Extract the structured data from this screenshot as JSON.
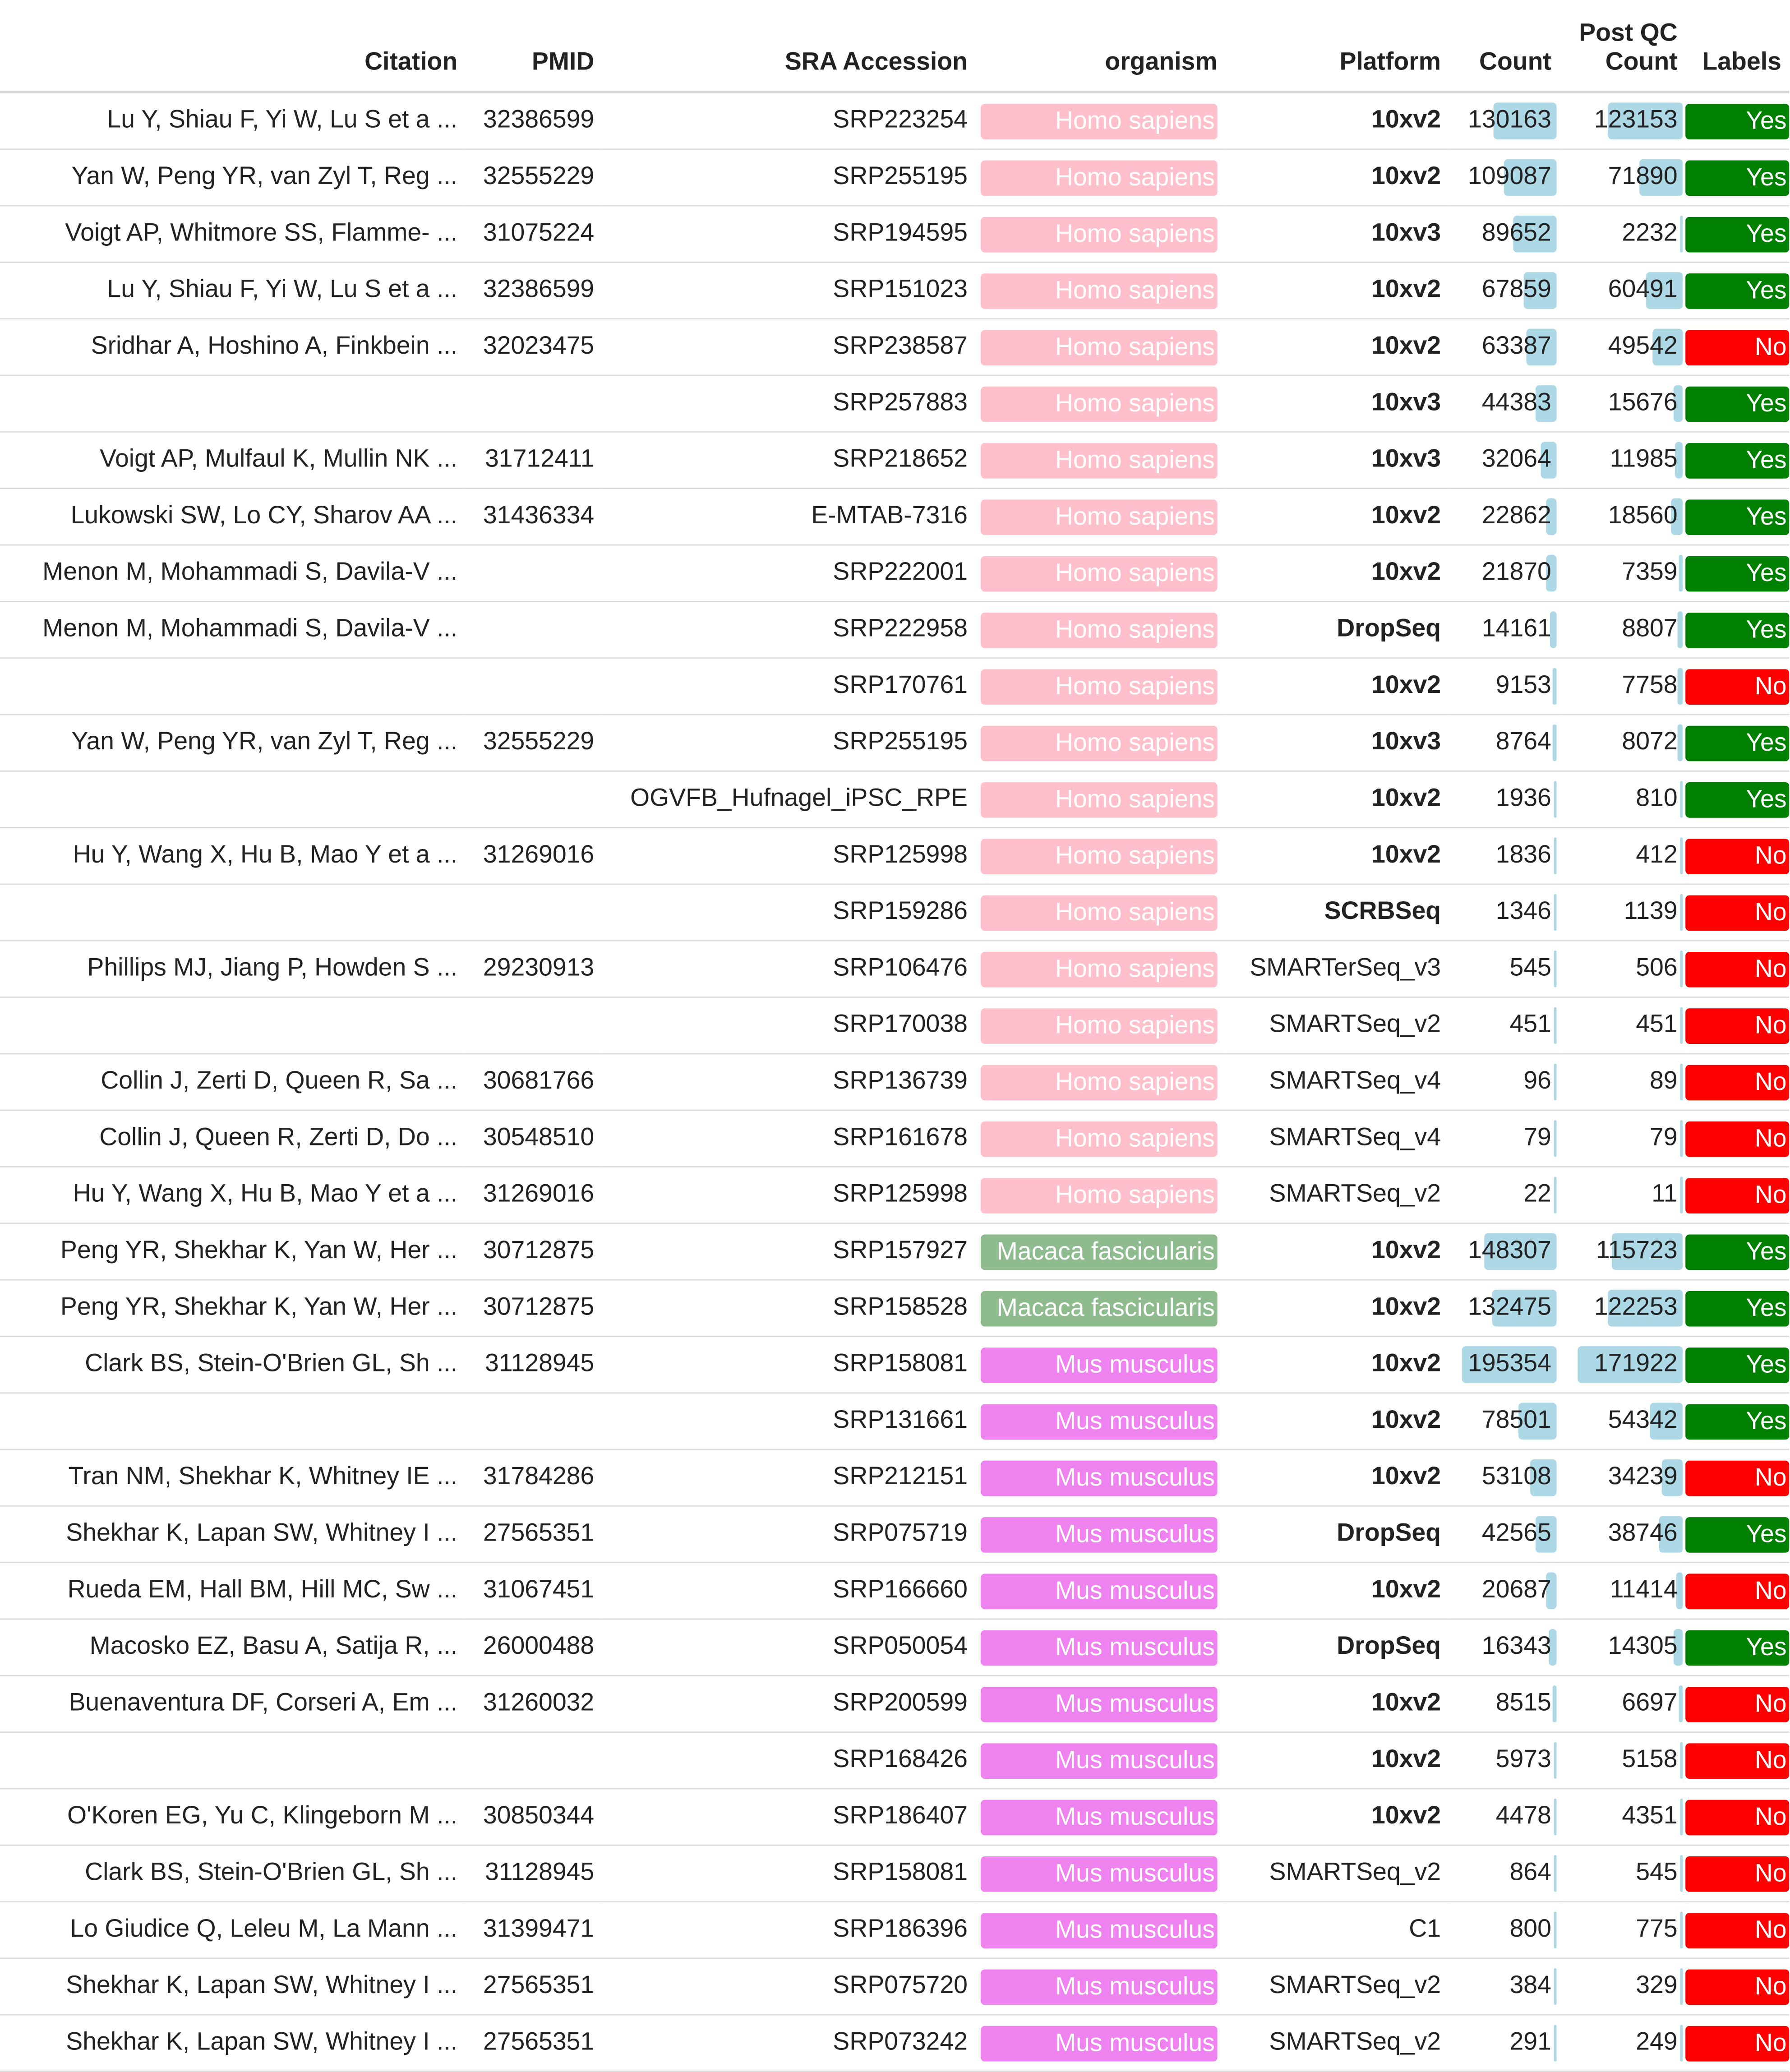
{
  "colors": {
    "Homo sapiens": "#ffc0cb",
    "Macaca fascicularis": "#8fbc8f",
    "Mus musculus": "#ee82ee",
    "Yes": "#008000",
    "No": "#ff0000",
    "bar": "#add8e6"
  },
  "headers": {
    "citation": "Citation",
    "pmid": "PMID",
    "sra": "SRA Accession",
    "organism": "organism",
    "platform": "Platform",
    "count": "Count",
    "postqc_line1": "Post QC",
    "postqc_line2": "Count",
    "labels": "Labels"
  },
  "rows": [
    {
      "citation": "Lu Y, Shiau F, Yi W, Lu S et a ...",
      "pmid": "32386599",
      "sra": "SRP223254",
      "organism": "Homo sapiens",
      "platform": "10xv2",
      "platform_bold": true,
      "count": "130163",
      "postqc": "123153",
      "labels": "Yes"
    },
    {
      "citation": "Yan W, Peng YR, van Zyl T, Reg ...",
      "pmid": "32555229",
      "sra": "SRP255195",
      "organism": "Homo sapiens",
      "platform": "10xv2",
      "platform_bold": true,
      "count": "109087",
      "postqc": "71890",
      "labels": "Yes"
    },
    {
      "citation": "Voigt AP, Whitmore SS, Flamme- ...",
      "pmid": "31075224",
      "sra": "SRP194595",
      "organism": "Homo sapiens",
      "platform": "10xv3",
      "platform_bold": true,
      "count": "89652",
      "postqc": "2232",
      "labels": "Yes"
    },
    {
      "citation": "Lu Y, Shiau F, Yi W, Lu S et a ...",
      "pmid": "32386599",
      "sra": "SRP151023",
      "organism": "Homo sapiens",
      "platform": "10xv2",
      "platform_bold": true,
      "count": "67859",
      "postqc": "60491",
      "labels": "Yes"
    },
    {
      "citation": "Sridhar A, Hoshino A, Finkbein ...",
      "pmid": "32023475",
      "sra": "SRP238587",
      "organism": "Homo sapiens",
      "platform": "10xv2",
      "platform_bold": true,
      "count": "63387",
      "postqc": "49542",
      "labels": "No"
    },
    {
      "citation": "",
      "pmid": "",
      "sra": "SRP257883",
      "organism": "Homo sapiens",
      "platform": "10xv3",
      "platform_bold": true,
      "count": "44383",
      "postqc": "15676",
      "labels": "Yes"
    },
    {
      "citation": "Voigt AP, Mulfaul K, Mullin NK ...",
      "pmid": "31712411",
      "sra": "SRP218652",
      "organism": "Homo sapiens",
      "platform": "10xv3",
      "platform_bold": true,
      "count": "32064",
      "postqc": "11985",
      "labels": "Yes"
    },
    {
      "citation": "Lukowski SW, Lo CY, Sharov AA ...",
      "pmid": "31436334",
      "sra": "E-MTAB-7316",
      "organism": "Homo sapiens",
      "platform": "10xv2",
      "platform_bold": true,
      "count": "22862",
      "postqc": "18560",
      "labels": "Yes"
    },
    {
      "citation": "Menon M, Mohammadi S, Davila-V ...",
      "pmid": "",
      "sra": "SRP222001",
      "organism": "Homo sapiens",
      "platform": "10xv2",
      "platform_bold": true,
      "count": "21870",
      "postqc": "7359",
      "labels": "Yes"
    },
    {
      "citation": "Menon M, Mohammadi S, Davila-V ...",
      "pmid": "",
      "sra": "SRP222958",
      "organism": "Homo sapiens",
      "platform": "DropSeq",
      "platform_bold": true,
      "count": "14161",
      "postqc": "8807",
      "labels": "Yes"
    },
    {
      "citation": "",
      "pmid": "",
      "sra": "SRP170761",
      "organism": "Homo sapiens",
      "platform": "10xv2",
      "platform_bold": true,
      "count": "9153",
      "postqc": "7758",
      "labels": "No"
    },
    {
      "citation": "Yan W, Peng YR, van Zyl T, Reg ...",
      "pmid": "32555229",
      "sra": "SRP255195",
      "organism": "Homo sapiens",
      "platform": "10xv3",
      "platform_bold": true,
      "count": "8764",
      "postqc": "8072",
      "labels": "Yes"
    },
    {
      "citation": "",
      "pmid": "",
      "sra": "OGVFB_Hufnagel_iPSC_RPE",
      "organism": "Homo sapiens",
      "platform": "10xv2",
      "platform_bold": true,
      "count": "1936",
      "postqc": "810",
      "labels": "Yes"
    },
    {
      "citation": "Hu Y, Wang X, Hu B, Mao Y et a ...",
      "pmid": "31269016",
      "sra": "SRP125998",
      "organism": "Homo sapiens",
      "platform": "10xv2",
      "platform_bold": true,
      "count": "1836",
      "postqc": "412",
      "labels": "No"
    },
    {
      "citation": "",
      "pmid": "",
      "sra": "SRP159286",
      "organism": "Homo sapiens",
      "platform": "SCRBSeq",
      "platform_bold": true,
      "count": "1346",
      "postqc": "1139",
      "labels": "No"
    },
    {
      "citation": "Phillips MJ, Jiang P, Howden S ...",
      "pmid": "29230913",
      "sra": "SRP106476",
      "organism": "Homo sapiens",
      "platform": "SMARTerSeq_v3",
      "platform_bold": false,
      "count": "545",
      "postqc": "506",
      "labels": "No"
    },
    {
      "citation": "",
      "pmid": "",
      "sra": "SRP170038",
      "organism": "Homo sapiens",
      "platform": "SMARTSeq_v2",
      "platform_bold": false,
      "count": "451",
      "postqc": "451",
      "labels": "No"
    },
    {
      "citation": "Collin J, Zerti D, Queen R, Sa ...",
      "pmid": "30681766",
      "sra": "SRP136739",
      "organism": "Homo sapiens",
      "platform": "SMARTSeq_v4",
      "platform_bold": false,
      "count": "96",
      "postqc": "89",
      "labels": "No"
    },
    {
      "citation": "Collin J, Queen R, Zerti D, Do ...",
      "pmid": "30548510",
      "sra": "SRP161678",
      "organism": "Homo sapiens",
      "platform": "SMARTSeq_v4",
      "platform_bold": false,
      "count": "79",
      "postqc": "79",
      "labels": "No"
    },
    {
      "citation": "Hu Y, Wang X, Hu B, Mao Y et a ...",
      "pmid": "31269016",
      "sra": "SRP125998",
      "organism": "Homo sapiens",
      "platform": "SMARTSeq_v2",
      "platform_bold": false,
      "count": "22",
      "postqc": "11",
      "labels": "No"
    },
    {
      "citation": "Peng YR, Shekhar K, Yan W, Her ...",
      "pmid": "30712875",
      "sra": "SRP157927",
      "organism": "Macaca fascicularis",
      "platform": "10xv2",
      "platform_bold": true,
      "count": "148307",
      "postqc": "115723",
      "labels": "Yes"
    },
    {
      "citation": "Peng YR, Shekhar K, Yan W, Her ...",
      "pmid": "30712875",
      "sra": "SRP158528",
      "organism": "Macaca fascicularis",
      "platform": "10xv2",
      "platform_bold": true,
      "count": "132475",
      "postqc": "122253",
      "labels": "Yes"
    },
    {
      "citation": "Clark BS, Stein-O'Brien GL, Sh ...",
      "pmid": "31128945",
      "sra": "SRP158081",
      "organism": "Mus musculus",
      "platform": "10xv2",
      "platform_bold": true,
      "count": "195354",
      "postqc": "171922",
      "labels": "Yes"
    },
    {
      "citation": "",
      "pmid": "",
      "sra": "SRP131661",
      "organism": "Mus musculus",
      "platform": "10xv2",
      "platform_bold": true,
      "count": "78501",
      "postqc": "54342",
      "labels": "Yes"
    },
    {
      "citation": "Tran NM, Shekhar K, Whitney IE ...",
      "pmid": "31784286",
      "sra": "SRP212151",
      "organism": "Mus musculus",
      "platform": "10xv2",
      "platform_bold": true,
      "count": "53108",
      "postqc": "34239",
      "labels": "No"
    },
    {
      "citation": "Shekhar K, Lapan SW, Whitney I ...",
      "pmid": "27565351",
      "sra": "SRP075719",
      "organism": "Mus musculus",
      "platform": "DropSeq",
      "platform_bold": true,
      "count": "42565",
      "postqc": "38746",
      "labels": "Yes"
    },
    {
      "citation": "Rueda EM, Hall BM, Hill MC, Sw ...",
      "pmid": "31067451",
      "sra": "SRP166660",
      "organism": "Mus musculus",
      "platform": "10xv2",
      "platform_bold": true,
      "count": "20687",
      "postqc": "11414",
      "labels": "No"
    },
    {
      "citation": "Macosko EZ, Basu A, Satija R, ...",
      "pmid": "26000488",
      "sra": "SRP050054",
      "organism": "Mus musculus",
      "platform": "DropSeq",
      "platform_bold": true,
      "count": "16343",
      "postqc": "14305",
      "labels": "Yes"
    },
    {
      "citation": "Buenaventura DF, Corseri A, Em ...",
      "pmid": "31260032",
      "sra": "SRP200599",
      "organism": "Mus musculus",
      "platform": "10xv2",
      "platform_bold": true,
      "count": "8515",
      "postqc": "6697",
      "labels": "No"
    },
    {
      "citation": "",
      "pmid": "",
      "sra": "SRP168426",
      "organism": "Mus musculus",
      "platform": "10xv2",
      "platform_bold": true,
      "count": "5973",
      "postqc": "5158",
      "labels": "No"
    },
    {
      "citation": "O'Koren EG, Yu C, Klingeborn M ...",
      "pmid": "30850344",
      "sra": "SRP186407",
      "organism": "Mus musculus",
      "platform": "10xv2",
      "platform_bold": true,
      "count": "4478",
      "postqc": "4351",
      "labels": "No"
    },
    {
      "citation": "Clark BS, Stein-O'Brien GL, Sh ...",
      "pmid": "31128945",
      "sra": "SRP158081",
      "organism": "Mus musculus",
      "platform": "SMARTSeq_v2",
      "platform_bold": false,
      "count": "864",
      "postqc": "545",
      "labels": "No"
    },
    {
      "citation": "Lo Giudice Q, Leleu M, La Mann ...",
      "pmid": "31399471",
      "sra": "SRP186396",
      "organism": "Mus musculus",
      "platform": "C1",
      "platform_bold": false,
      "count": "800",
      "postqc": "775",
      "labels": "No"
    },
    {
      "citation": "Shekhar K, Lapan SW, Whitney I ...",
      "pmid": "27565351",
      "sra": "SRP075720",
      "organism": "Mus musculus",
      "platform": "SMARTSeq_v2",
      "platform_bold": false,
      "count": "384",
      "postqc": "329",
      "labels": "No"
    },
    {
      "citation": "Shekhar K, Lapan SW, Whitney I ...",
      "pmid": "27565351",
      "sra": "SRP073242",
      "organism": "Mus musculus",
      "platform": "SMARTSeq_v2",
      "platform_bold": false,
      "count": "291",
      "postqc": "249",
      "labels": "No"
    }
  ]
}
